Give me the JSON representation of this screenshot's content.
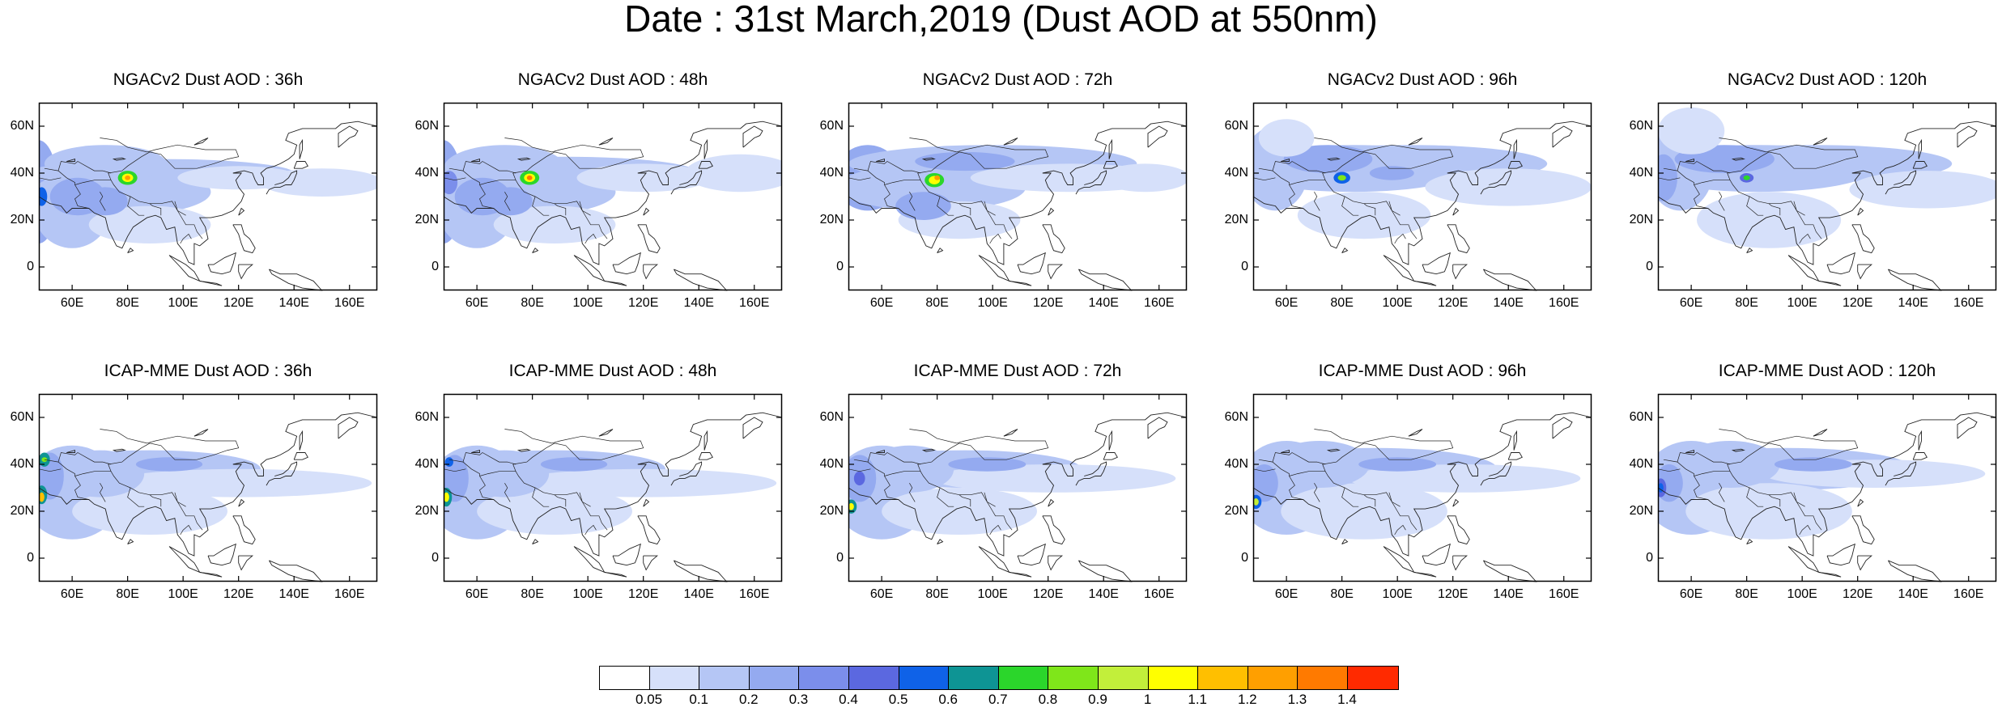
{
  "title": "Date : 31st March,2019 (Dust AOD at 550nm)",
  "rows": [
    {
      "model": "NGACv2",
      "panels": [
        {
          "title": "NGACv2 Dust AOD : 36h",
          "forecast_hour": 36
        },
        {
          "title": "NGACv2 Dust AOD : 48h",
          "forecast_hour": 48
        },
        {
          "title": "NGACv2 Dust AOD : 72h",
          "forecast_hour": 72
        },
        {
          "title": "NGACv2 Dust AOD : 96h",
          "forecast_hour": 96
        },
        {
          "title": "NGACv2 Dust AOD : 120h",
          "forecast_hour": 120
        }
      ]
    },
    {
      "model": "ICAP-MME",
      "panels": [
        {
          "title": "ICAP-MME Dust AOD : 36h",
          "forecast_hour": 36
        },
        {
          "title": "ICAP-MME Dust AOD : 48h",
          "forecast_hour": 48
        },
        {
          "title": "ICAP-MME Dust AOD : 72h",
          "forecast_hour": 72
        },
        {
          "title": "ICAP-MME Dust AOD : 96h",
          "forecast_hour": 96
        },
        {
          "title": "ICAP-MME Dust AOD : 120h",
          "forecast_hour": 120
        }
      ]
    }
  ],
  "map_extent": {
    "lon": [
      48,
      170
    ],
    "lat": [
      -10,
      70
    ]
  },
  "lat_ticks": [
    "60N",
    "40N",
    "20N",
    "0"
  ],
  "lat_tick_values": [
    60,
    40,
    20,
    0
  ],
  "lon_ticks": [
    "60E",
    "80E",
    "100E",
    "120E",
    "140E",
    "160E"
  ],
  "lon_tick_values": [
    60,
    80,
    100,
    120,
    140,
    160
  ],
  "colorbar": {
    "labels": [
      "0.05",
      "0.1",
      "0.2",
      "0.3",
      "0.4",
      "0.5",
      "0.6",
      "0.7",
      "0.8",
      "0.9",
      "1",
      "1.1",
      "1.2",
      "1.3",
      "1.4"
    ],
    "colors": [
      "#ffffff",
      "#d6e0fa",
      "#b5c6f5",
      "#94aaf0",
      "#7b8eeb",
      "#5b68e0",
      "#0f62e8",
      "#0e9494",
      "#2bd62b",
      "#7fe61a",
      "#c2ef3a",
      "#ffff00",
      "#ffbf00",
      "#ff9f00",
      "#ff7a00",
      "#ff2a00"
    ]
  }
}
